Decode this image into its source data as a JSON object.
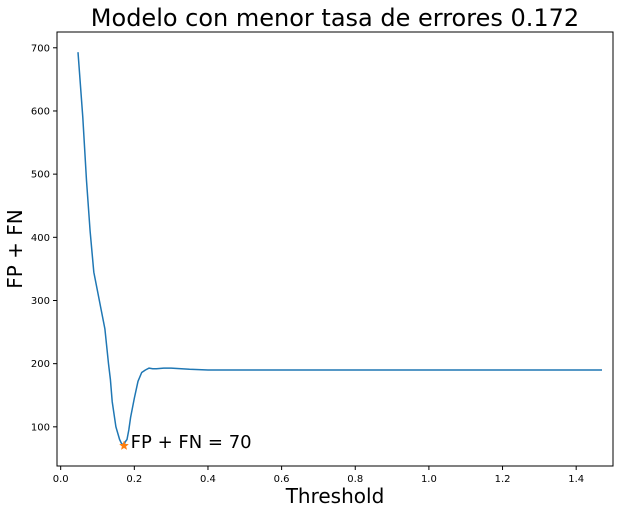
{
  "chart_data": {
    "type": "line",
    "title": "Modelo con menor tasa de errores 0.172",
    "xlabel": "Threshold",
    "ylabel": "FP + FN",
    "xlim": [
      -0.01,
      1.5
    ],
    "ylim": [
      38,
      725
    ],
    "x_ticks": [
      0.0,
      0.2,
      0.4,
      0.6,
      0.8,
      1.0,
      1.2,
      1.4
    ],
    "x_tick_labels": [
      "0.0",
      "0.2",
      "0.4",
      "0.6",
      "0.8",
      "1.0",
      "1.2",
      "1.4"
    ],
    "y_ticks": [
      100,
      200,
      300,
      400,
      500,
      600,
      700
    ],
    "y_tick_labels": [
      "100",
      "200",
      "300",
      "400",
      "500",
      "600",
      "700"
    ],
    "grid": false,
    "series": [
      {
        "color": "#1f77b4",
        "x": [
          0.047,
          0.06,
          0.07,
          0.08,
          0.09,
          0.1,
          0.11,
          0.12,
          0.13,
          0.135,
          0.14,
          0.15,
          0.16,
          0.165,
          0.17,
          0.172,
          0.175,
          0.18,
          0.185,
          0.19,
          0.2,
          0.21,
          0.22,
          0.23,
          0.24,
          0.25,
          0.26,
          0.28,
          0.3,
          0.35,
          0.4,
          0.45,
          0.5,
          0.7,
          1.0,
          1.2,
          1.47
        ],
        "y": [
          693,
          590,
          490,
          410,
          345,
          315,
          285,
          255,
          200,
          175,
          140,
          100,
          80,
          74,
          71,
          70,
          76,
          80,
          95,
          115,
          145,
          172,
          186,
          190,
          193,
          192,
          192,
          193,
          193,
          191,
          190,
          190,
          190,
          190,
          190,
          190,
          190
        ]
      }
    ],
    "highlight": {
      "x": 0.172,
      "y": 70,
      "marker": "star",
      "color": "#ff7f0e"
    },
    "annotation": {
      "text": "FP + FN = 70",
      "x": 0.19,
      "y": 70
    }
  }
}
